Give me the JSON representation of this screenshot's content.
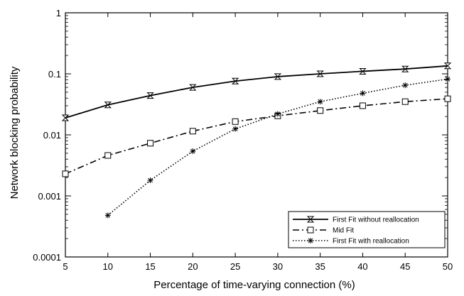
{
  "chart_data": {
    "type": "line",
    "xlabel": "Percentage of time-varying connection (%)",
    "ylabel": "Network blocking probability",
    "x_ticks": [
      5,
      10,
      15,
      20,
      25,
      30,
      35,
      40,
      45,
      50
    ],
    "y_ticks": [
      0.0001,
      0.001,
      0.01,
      0.1,
      1
    ],
    "y_tick_labels": [
      "0.0001",
      "0.001",
      "0.01",
      "0.1",
      "1"
    ],
    "xlim": [
      5,
      50
    ],
    "ylim": [
      0.0001,
      1
    ],
    "y_scale": "log",
    "grid": false,
    "legend_position": "bottom-right",
    "series": [
      {
        "name": "First Fit without reallocation",
        "line_style": "solid",
        "marker": "hourglass",
        "x": [
          5,
          10,
          15,
          20,
          25,
          30,
          35,
          40,
          45,
          50
        ],
        "values": [
          0.019,
          0.031,
          0.044,
          0.06,
          0.076,
          0.09,
          0.1,
          0.11,
          0.12,
          0.135
        ]
      },
      {
        "name": "Mid Fit",
        "line_style": "dashdot",
        "marker": "square",
        "x": [
          5,
          10,
          15,
          20,
          25,
          30,
          35,
          40,
          45,
          50
        ],
        "values": [
          0.0023,
          0.0046,
          0.0073,
          0.0115,
          0.0165,
          0.0205,
          0.025,
          0.03,
          0.035,
          0.039
        ]
      },
      {
        "name": "First Fit with reallocation",
        "line_style": "dotted",
        "marker": "asterisk",
        "x": [
          10,
          15,
          20,
          25,
          30,
          35,
          40,
          45,
          50
        ],
        "values": [
          0.00048,
          0.0018,
          0.0054,
          0.0125,
          0.022,
          0.035,
          0.048,
          0.065,
          0.082
        ]
      }
    ]
  }
}
